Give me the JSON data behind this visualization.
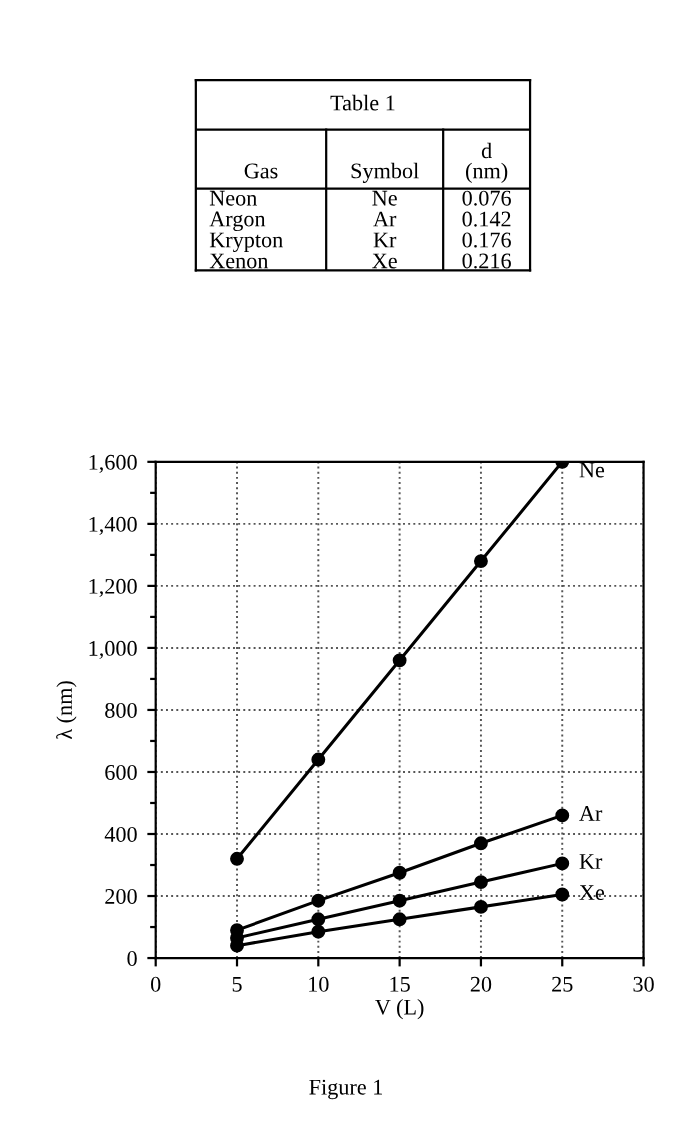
{
  "chart_data": [
    {
      "type": "other",
      "title": "Table 1",
      "categories": [
        "Gas",
        "Symbol",
        "d\n(nm)"
      ],
      "annotations": [
        "Neon",
        "Ne",
        "0.076",
        "Argon",
        "Ar",
        "0.142",
        "Krypton",
        "Kr",
        "0.176",
        "Xenon",
        "Xe",
        "0.216"
      ]
    },
    {
      "type": "line",
      "xlabel": "V (L)",
      "ylabel": "λ (nm)",
      "x": [
        5,
        10,
        15,
        20,
        25
      ],
      "series": [
        {
          "name": "Ne",
          "color": "#000000",
          "values": [
            320,
            640,
            960,
            1280,
            1600
          ]
        },
        {
          "name": "Ar",
          "color": "#000000",
          "values": [
            90,
            185,
            275,
            370,
            460
          ]
        },
        {
          "name": "Kr",
          "color": "#000000",
          "values": [
            65,
            125,
            185,
            245,
            305
          ]
        },
        {
          "name": "Xe",
          "color": "#000000",
          "values": [
            40,
            85,
            125,
            165,
            205
          ]
        }
      ],
      "xlim": [
        0,
        30
      ],
      "xticks": [
        0,
        5,
        10,
        15,
        20,
        25,
        30
      ],
      "ylim": [
        0,
        1600
      ],
      "yticks": [
        {
          "value": 0,
          "label": "0"
        },
        {
          "value": 100,
          "label": null
        },
        {
          "value": 200,
          "label": "200"
        },
        {
          "value": 300,
          "label": null
        },
        {
          "value": 400,
          "label": "400"
        },
        {
          "value": 500,
          "label": null
        },
        {
          "value": 600,
          "label": "600"
        },
        {
          "value": 700,
          "label": null
        },
        {
          "value": 800,
          "label": "800"
        },
        {
          "value": 900,
          "label": null
        },
        {
          "value": 1000,
          "label": "1,000"
        },
        {
          "value": 1100,
          "label": null
        },
        {
          "value": 1200,
          "label": "1,200"
        },
        {
          "value": 1300,
          "label": null
        },
        {
          "value": 1400,
          "label": "1,400"
        },
        {
          "value": 1500,
          "label": null
        },
        {
          "value": 1600,
          "label": "1,600"
        }
      ],
      "grid": true,
      "marker": "circle",
      "line_style": "solid",
      "legend": false,
      "annotations": [
        "Figure 1"
      ]
    }
  ]
}
